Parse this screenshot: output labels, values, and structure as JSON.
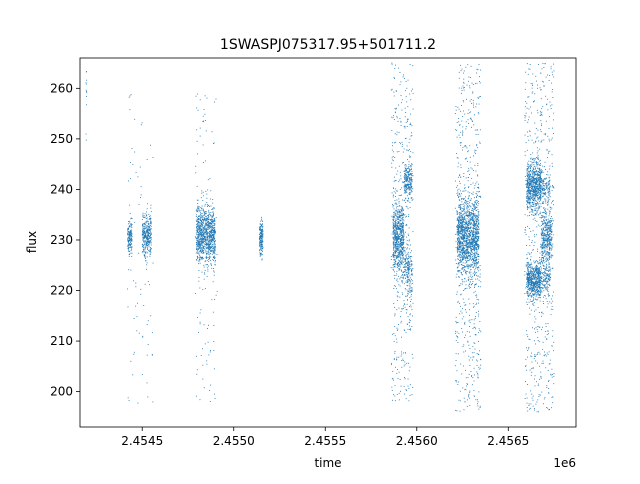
{
  "chart_data": {
    "type": "scatter",
    "title": "1SWASPJ075317.95+501711.2",
    "xlabel": "time",
    "ylabel": "flux",
    "x_offset_label": "1e6",
    "xlim": [
      2454160,
      2456870
    ],
    "ylim": [
      193,
      266
    ],
    "x_ticks": [
      {
        "value": 2454500,
        "label": "2.4545"
      },
      {
        "value": 2455000,
        "label": "2.4550"
      },
      {
        "value": 2455500,
        "label": "2.4555"
      },
      {
        "value": 2456000,
        "label": "2.4560"
      },
      {
        "value": 2456500,
        "label": "2.4565"
      }
    ],
    "y_ticks": [
      {
        "value": 200,
        "label": "200"
      },
      {
        "value": 210,
        "label": "210"
      },
      {
        "value": 220,
        "label": "220"
      },
      {
        "value": 230,
        "label": "230"
      },
      {
        "value": 240,
        "label": "240"
      },
      {
        "value": 250,
        "label": "250"
      },
      {
        "value": 260,
        "label": "260"
      }
    ],
    "grid": false,
    "legend": "none",
    "marker_color": "#1f77b4",
    "point_groups": [
      {
        "x_range": [
          2454193,
          2454197
        ],
        "y_center": 262,
        "y_spread": 4,
        "count": 15
      },
      {
        "x_range": [
          2454420,
          2454445
        ],
        "y_center": 230.5,
        "y_spread": 1.6,
        "count": 160
      },
      {
        "x_range": [
          2454500,
          2454550
        ],
        "y_center": 231,
        "y_spread": 2.2,
        "count": 330
      },
      {
        "x_range": [
          2454795,
          2454900
        ],
        "y_center": 231,
        "y_spread": 2.8,
        "count": 950
      },
      {
        "x_range": [
          2455140,
          2455160
        ],
        "y_center": 230.5,
        "y_spread": 1.6,
        "count": 170
      },
      {
        "x_range": [
          2455870,
          2455930
        ],
        "y_center": 230.5,
        "y_spread": 3.5,
        "count": 650
      },
      {
        "x_range": [
          2455930,
          2455975
        ],
        "y_center": 241.5,
        "y_spread": 1.8,
        "count": 220
      },
      {
        "x_range": [
          2455930,
          2455975
        ],
        "y_center": 224,
        "y_spread": 2.5,
        "count": 160
      },
      {
        "x_range": [
          2456220,
          2456340
        ],
        "y_center": 230.5,
        "y_spread": 3.8,
        "count": 1300
      },
      {
        "x_range": [
          2456600,
          2456680
        ],
        "y_center": 240.5,
        "y_spread": 2.4,
        "count": 700
      },
      {
        "x_range": [
          2456600,
          2456680
        ],
        "y_center": 221.8,
        "y_spread": 1.8,
        "count": 600
      },
      {
        "x_range": [
          2456680,
          2456740
        ],
        "y_center": 230.5,
        "y_spread": 2.8,
        "count": 380
      },
      {
        "x_range": [
          2456680,
          2456730
        ],
        "y_center": 240.5,
        "y_spread": 1.6,
        "count": 120
      },
      {
        "x_range": [
          2456680,
          2456730
        ],
        "y_center": 222.5,
        "y_spread": 1.6,
        "count": 120
      }
    ],
    "scatter_outliers": [
      {
        "x_range": [
          2454420,
          2454560
        ],
        "y_range": [
          197,
          262
        ],
        "count": 70
      },
      {
        "x_range": [
          2454790,
          2454910
        ],
        "y_range": [
          197,
          262
        ],
        "count": 110
      },
      {
        "x_range": [
          2455860,
          2455980
        ],
        "y_range": [
          198,
          265
        ],
        "count": 420
      },
      {
        "x_range": [
          2456210,
          2456350
        ],
        "y_range": [
          196,
          265
        ],
        "count": 520
      },
      {
        "x_range": [
          2456590,
          2456750
        ],
        "y_range": [
          196,
          265
        ],
        "count": 560
      }
    ]
  }
}
